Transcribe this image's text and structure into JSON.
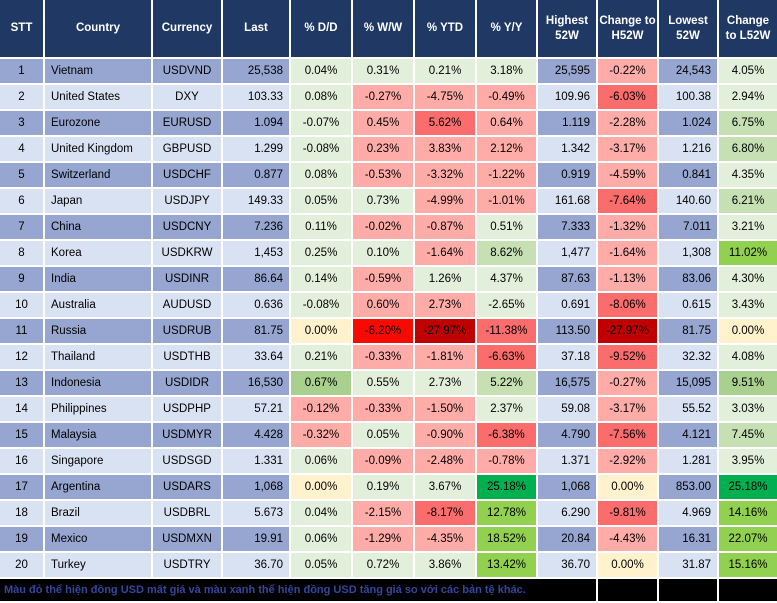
{
  "colors": {
    "header_bg": "#1F3864",
    "row_odd": "#97A6D0",
    "row_even": "#D9E2F2",
    "green_1": "#E2EFDA",
    "green_2": "#C6E0B4",
    "green_3": "#A9D08E",
    "green_4": "#92D050",
    "green_5": "#00B050",
    "red_1": "#FFACA8",
    "red_2": "#FB6C6C",
    "red_3": "#F70A00",
    "red_4": "#C00000",
    "neutral": "#FFF2CC",
    "footer_text": "#35469E"
  },
  "chart_data": {
    "type": "table",
    "title": "USD exchange rates vs world currencies (52-week view)",
    "columns": [
      "STT",
      "Country",
      "Currency",
      "Last",
      "% D/D",
      "% W/W",
      "% YTD",
      "% Y/Y",
      "Highest 52W",
      "Change to H52W",
      "Lowest 52W",
      "Change to L52W"
    ],
    "rows": [
      {
        "stt": "1",
        "country": "Vietnam",
        "currency": "USDVND",
        "last": "25,538",
        "dd": {
          "v": "0.04%",
          "c": "lg"
        },
        "ww": {
          "v": "0.31%",
          "c": "lg"
        },
        "ytd": {
          "v": "0.21%",
          "c": "lg"
        },
        "yy": {
          "v": "3.18%",
          "c": "lg"
        },
        "high": "25,595",
        "chg_h": {
          "v": "-0.22%",
          "c": "lr"
        },
        "low": "24,543",
        "chg_l": {
          "v": "4.05%",
          "c": "lg"
        }
      },
      {
        "stt": "2",
        "country": "United States",
        "currency": "DXY",
        "last": "103.33",
        "dd": {
          "v": "0.08%",
          "c": "lg"
        },
        "ww": {
          "v": "-0.27%",
          "c": "lr"
        },
        "ytd": {
          "v": "-4.75%",
          "c": "lr"
        },
        "yy": {
          "v": "-0.49%",
          "c": "lr"
        },
        "high": "109.96",
        "chg_h": {
          "v": "-6.03%",
          "c": "mr"
        },
        "low": "100.38",
        "chg_l": {
          "v": "2.94%",
          "c": "lg"
        }
      },
      {
        "stt": "3",
        "country": "Eurozone",
        "currency": "EURUSD",
        "last": "1.094",
        "dd": {
          "v": "-0.07%",
          "c": "lg"
        },
        "ww": {
          "v": "0.45%",
          "c": "lr"
        },
        "ytd": {
          "v": "5.62%",
          "c": "mr"
        },
        "yy": {
          "v": "0.64%",
          "c": "lr"
        },
        "high": "1.119",
        "chg_h": {
          "v": "-2.28%",
          "c": "lr"
        },
        "low": "1.024",
        "chg_l": {
          "v": "6.75%",
          "c": "g2"
        }
      },
      {
        "stt": "4",
        "country": "United Kingdom",
        "currency": "GBPUSD",
        "last": "1.299",
        "dd": {
          "v": "-0.08%",
          "c": "lg"
        },
        "ww": {
          "v": "0.23%",
          "c": "lr"
        },
        "ytd": {
          "v": "3.83%",
          "c": "lr"
        },
        "yy": {
          "v": "2.12%",
          "c": "lr"
        },
        "high": "1.342",
        "chg_h": {
          "v": "-3.17%",
          "c": "lr"
        },
        "low": "1.216",
        "chg_l": {
          "v": "6.80%",
          "c": "g2"
        }
      },
      {
        "stt": "5",
        "country": "Switzerland",
        "currency": "USDCHF",
        "last": "0.877",
        "dd": {
          "v": "0.08%",
          "c": "lg"
        },
        "ww": {
          "v": "-0.53%",
          "c": "lr"
        },
        "ytd": {
          "v": "-3.32%",
          "c": "lr"
        },
        "yy": {
          "v": "-1.22%",
          "c": "lr"
        },
        "high": "0.919",
        "chg_h": {
          "v": "-4.59%",
          "c": "lr"
        },
        "low": "0.841",
        "chg_l": {
          "v": "4.35%",
          "c": "lg"
        }
      },
      {
        "stt": "6",
        "country": "Japan",
        "currency": "USDJPY",
        "last": "149.33",
        "dd": {
          "v": "0.05%",
          "c": "lg"
        },
        "ww": {
          "v": "0.73%",
          "c": "lg"
        },
        "ytd": {
          "v": "-4.99%",
          "c": "lr"
        },
        "yy": {
          "v": "-1.01%",
          "c": "lr"
        },
        "high": "161.68",
        "chg_h": {
          "v": "-7.64%",
          "c": "mr"
        },
        "low": "140.60",
        "chg_l": {
          "v": "6.21%",
          "c": "g2"
        }
      },
      {
        "stt": "7",
        "country": "China",
        "currency": "USDCNY",
        "last": "7.236",
        "dd": {
          "v": "0.11%",
          "c": "lg"
        },
        "ww": {
          "v": "-0.02%",
          "c": "lr"
        },
        "ytd": {
          "v": "-0.87%",
          "c": "lr"
        },
        "yy": {
          "v": "0.51%",
          "c": "lg"
        },
        "high": "7.333",
        "chg_h": {
          "v": "-1.32%",
          "c": "lr"
        },
        "low": "7.011",
        "chg_l": {
          "v": "3.21%",
          "c": "lg"
        }
      },
      {
        "stt": "8",
        "country": "Korea",
        "currency": "USDKRW",
        "last": "1,453",
        "dd": {
          "v": "0.25%",
          "c": "lg"
        },
        "ww": {
          "v": "0.10%",
          "c": "lg"
        },
        "ytd": {
          "v": "-1.64%",
          "c": "lr"
        },
        "yy": {
          "v": "8.62%",
          "c": "g2"
        },
        "high": "1,477",
        "chg_h": {
          "v": "-1.64%",
          "c": "lr"
        },
        "low": "1,308",
        "chg_l": {
          "v": "11.02%",
          "c": "bg"
        }
      },
      {
        "stt": "9",
        "country": "India",
        "currency": "USDINR",
        "last": "86.64",
        "dd": {
          "v": "0.14%",
          "c": "lg"
        },
        "ww": {
          "v": "-0.59%",
          "c": "lr"
        },
        "ytd": {
          "v": "1.26%",
          "c": "lg"
        },
        "yy": {
          "v": "4.37%",
          "c": "lg"
        },
        "high": "87.63",
        "chg_h": {
          "v": "-1.13%",
          "c": "lr"
        },
        "low": "83.06",
        "chg_l": {
          "v": "4.30%",
          "c": "lg"
        }
      },
      {
        "stt": "10",
        "country": "Australia",
        "currency": "AUDUSD",
        "last": "0.636",
        "dd": {
          "v": "-0.08%",
          "c": "lg"
        },
        "ww": {
          "v": "0.60%",
          "c": "lr"
        },
        "ytd": {
          "v": "2.73%",
          "c": "lr"
        },
        "yy": {
          "v": "-2.65%",
          "c": "lg"
        },
        "high": "0.691",
        "chg_h": {
          "v": "-8.06%",
          "c": "mr"
        },
        "low": "0.615",
        "chg_l": {
          "v": "3.43%",
          "c": "lg"
        }
      },
      {
        "stt": "11",
        "country": "Russia",
        "currency": "USDRUB",
        "last": "81.75",
        "dd": {
          "v": "0.00%",
          "c": "cr"
        },
        "ww": {
          "v": "-6.20%",
          "c": "rr"
        },
        "ytd": {
          "v": "-27.97%",
          "c": "dr"
        },
        "yy": {
          "v": "-11.38%",
          "c": "mr"
        },
        "high": "113.50",
        "chg_h": {
          "v": "-27.97%",
          "c": "dr"
        },
        "low": "81.75",
        "chg_l": {
          "v": "0.00%",
          "c": "cr"
        }
      },
      {
        "stt": "12",
        "country": "Thailand",
        "currency": "USDTHB",
        "last": "33.64",
        "dd": {
          "v": "0.21%",
          "c": "lg"
        },
        "ww": {
          "v": "-0.33%",
          "c": "lr"
        },
        "ytd": {
          "v": "-1.81%",
          "c": "lr"
        },
        "yy": {
          "v": "-6.63%",
          "c": "mr"
        },
        "high": "37.18",
        "chg_h": {
          "v": "-9.52%",
          "c": "mr"
        },
        "low": "32.32",
        "chg_l": {
          "v": "4.08%",
          "c": "lg"
        }
      },
      {
        "stt": "13",
        "country": "Indonesia",
        "currency": "USDIDR",
        "last": "16,530",
        "dd": {
          "v": "0.67%",
          "c": "g3"
        },
        "ww": {
          "v": "0.55%",
          "c": "lg"
        },
        "ytd": {
          "v": "2.73%",
          "c": "lg"
        },
        "yy": {
          "v": "5.22%",
          "c": "g2"
        },
        "high": "16,575",
        "chg_h": {
          "v": "-0.27%",
          "c": "lr"
        },
        "low": "15,095",
        "chg_l": {
          "v": "9.51%",
          "c": "g3"
        }
      },
      {
        "stt": "14",
        "country": "Philippines",
        "currency": "USDPHP",
        "last": "57.21",
        "dd": {
          "v": "-0.12%",
          "c": "lr"
        },
        "ww": {
          "v": "-0.33%",
          "c": "lr"
        },
        "ytd": {
          "v": "-1.50%",
          "c": "lr"
        },
        "yy": {
          "v": "2.37%",
          "c": "lg"
        },
        "high": "59.08",
        "chg_h": {
          "v": "-3.17%",
          "c": "lr"
        },
        "low": "55.52",
        "chg_l": {
          "v": "3.03%",
          "c": "lg"
        }
      },
      {
        "stt": "15",
        "country": "Malaysia",
        "currency": "USDMYR",
        "last": "4.428",
        "dd": {
          "v": "-0.32%",
          "c": "lr"
        },
        "ww": {
          "v": "0.05%",
          "c": "lg"
        },
        "ytd": {
          "v": "-0.90%",
          "c": "lr"
        },
        "yy": {
          "v": "-6.38%",
          "c": "mr"
        },
        "high": "4.790",
        "chg_h": {
          "v": "-7.56%",
          "c": "mr"
        },
        "low": "4.121",
        "chg_l": {
          "v": "7.45%",
          "c": "g2"
        }
      },
      {
        "stt": "16",
        "country": "Singapore",
        "currency": "USDSGD",
        "last": "1.331",
        "dd": {
          "v": "0.06%",
          "c": "lg"
        },
        "ww": {
          "v": "-0.09%",
          "c": "lr"
        },
        "ytd": {
          "v": "-2.48%",
          "c": "lr"
        },
        "yy": {
          "v": "-0.78%",
          "c": "lr"
        },
        "high": "1.371",
        "chg_h": {
          "v": "-2.92%",
          "c": "lr"
        },
        "low": "1.281",
        "chg_l": {
          "v": "3.95%",
          "c": "lg"
        }
      },
      {
        "stt": "17",
        "country": "Argentina",
        "currency": "USDARS",
        "last": "1,068",
        "dd": {
          "v": "0.00%",
          "c": "cr"
        },
        "ww": {
          "v": "0.19%",
          "c": "lg"
        },
        "ytd": {
          "v": "3.67%",
          "c": "lg"
        },
        "yy": {
          "v": "25.18%",
          "c": "sg"
        },
        "high": "1,068",
        "chg_h": {
          "v": "0.00%",
          "c": "cr"
        },
        "low": "853.00",
        "chg_l": {
          "v": "25.18%",
          "c": "sg"
        }
      },
      {
        "stt": "18",
        "country": "Brazil",
        "currency": "USDBRL",
        "last": "5.673",
        "dd": {
          "v": "0.04%",
          "c": "lg"
        },
        "ww": {
          "v": "-2.15%",
          "c": "lr"
        },
        "ytd": {
          "v": "-8.17%",
          "c": "mr"
        },
        "yy": {
          "v": "12.78%",
          "c": "bg"
        },
        "high": "6.290",
        "chg_h": {
          "v": "-9.81%",
          "c": "mr"
        },
        "low": "4.969",
        "chg_l": {
          "v": "14.16%",
          "c": "bg"
        }
      },
      {
        "stt": "19",
        "country": "Mexico",
        "currency": "USDMXN",
        "last": "19.91",
        "dd": {
          "v": "0.06%",
          "c": "lg"
        },
        "ww": {
          "v": "-1.29%",
          "c": "lr"
        },
        "ytd": {
          "v": "-4.35%",
          "c": "lr"
        },
        "yy": {
          "v": "18.52%",
          "c": "bg"
        },
        "high": "20.84",
        "chg_h": {
          "v": "-4.43%",
          "c": "lr"
        },
        "low": "16.31",
        "chg_l": {
          "v": "22.07%",
          "c": "bg"
        }
      },
      {
        "stt": "20",
        "country": "Turkey",
        "currency": "USDTRY",
        "last": "36.70",
        "dd": {
          "v": "0.05%",
          "c": "lg"
        },
        "ww": {
          "v": "0.72%",
          "c": "lg"
        },
        "ytd": {
          "v": "3.86%",
          "c": "lg"
        },
        "yy": {
          "v": "13.42%",
          "c": "bg"
        },
        "high": "36.70",
        "chg_h": {
          "v": "0.00%",
          "c": "cr"
        },
        "low": "31.87",
        "chg_l": {
          "v": "15.16%",
          "c": "bg"
        }
      }
    ]
  },
  "footer": {
    "note": "Màu đỏ thể hiện đồng USD mất giá và màu xanh thể hiện đồng USD tăng giá so với các bản tệ khác."
  }
}
